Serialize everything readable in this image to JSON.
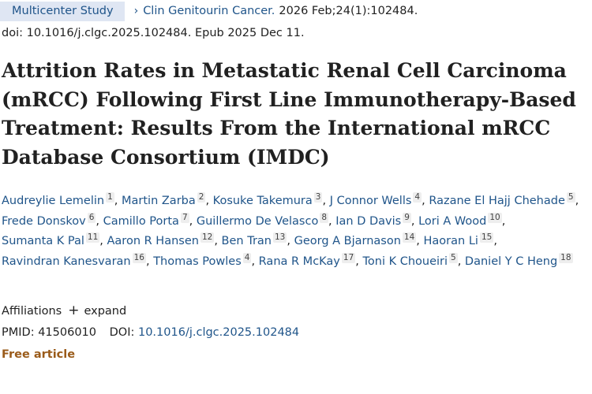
{
  "header": {
    "badge": "Multicenter Study",
    "journal_chevron": "›",
    "journal_name": "Clin Genitourin Cancer.",
    "citation": "2026 Feb;24(1):102484."
  },
  "doi_line": "doi: 10.1016/j.clgc.2025.102484. Epub 2025 Dec 11.",
  "title": "Attrition Rates in Metastatic Renal Cell Carcinoma (mRCC) Following First Line Immunotherapy-Based Treatment: Results From the International mRCC Database Consortium (IMDC)",
  "authors": [
    {
      "name": "Audreylie Lemelin",
      "aff": "1"
    },
    {
      "name": "Martin Zarba",
      "aff": "2"
    },
    {
      "name": "Kosuke Takemura",
      "aff": "3"
    },
    {
      "name": "J Connor Wells",
      "aff": "4"
    },
    {
      "name": "Razane El Hajj Chehade",
      "aff": "5"
    },
    {
      "name": "Frede Donskov",
      "aff": "6"
    },
    {
      "name": "Camillo Porta",
      "aff": "7"
    },
    {
      "name": "Guillermo De Velasco",
      "aff": "8"
    },
    {
      "name": "Ian D Davis",
      "aff": "9"
    },
    {
      "name": "Lori A Wood",
      "aff": "10"
    },
    {
      "name": "Sumanta K Pal",
      "aff": "11"
    },
    {
      "name": "Aaron R Hansen",
      "aff": "12"
    },
    {
      "name": "Ben Tran",
      "aff": "13"
    },
    {
      "name": "Georg A Bjarnason",
      "aff": "14"
    },
    {
      "name": "Haoran Li",
      "aff": "15"
    },
    {
      "name": "Ravindran Kanesvaran",
      "aff": "16"
    },
    {
      "name": "Thomas Powles",
      "aff": "4"
    },
    {
      "name": "Rana R McKay",
      "aff": "17"
    },
    {
      "name": "Toni K Choueiri",
      "aff": "5"
    },
    {
      "name": "Daniel Y C Heng",
      "aff": "18"
    }
  ],
  "affiliations": {
    "label": "Affiliations",
    "plus": "+",
    "expand": "expand"
  },
  "identifiers": {
    "pmid_label": "PMID:",
    "pmid": "41506010",
    "doi_label": "DOI:",
    "doi": "10.1016/j.clgc.2025.102484"
  },
  "free_article": "Free article",
  "colors": {
    "link": "#20558a",
    "badge_bg": "#dfe6f3",
    "free_article": "#9a5b1a"
  }
}
